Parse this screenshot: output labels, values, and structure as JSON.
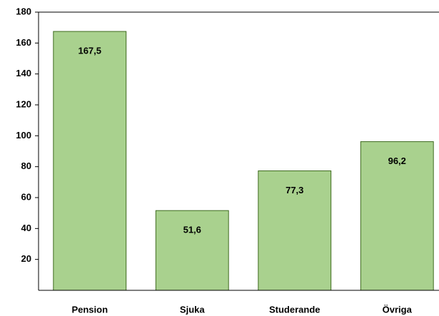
{
  "chart_data": {
    "type": "bar",
    "categories": [
      "Pension",
      "Sjuka",
      "Studerande",
      "Övriga"
    ],
    "values": [
      167.5,
      51.6,
      77.3,
      96.2
    ],
    "value_labels": [
      "167,5",
      "51,6",
      "77,3",
      "96,2"
    ],
    "color": "#a9d18e",
    "ylim": [
      0,
      180
    ],
    "yticks": [
      20,
      40,
      60,
      80,
      100,
      120,
      140,
      160,
      180
    ]
  }
}
